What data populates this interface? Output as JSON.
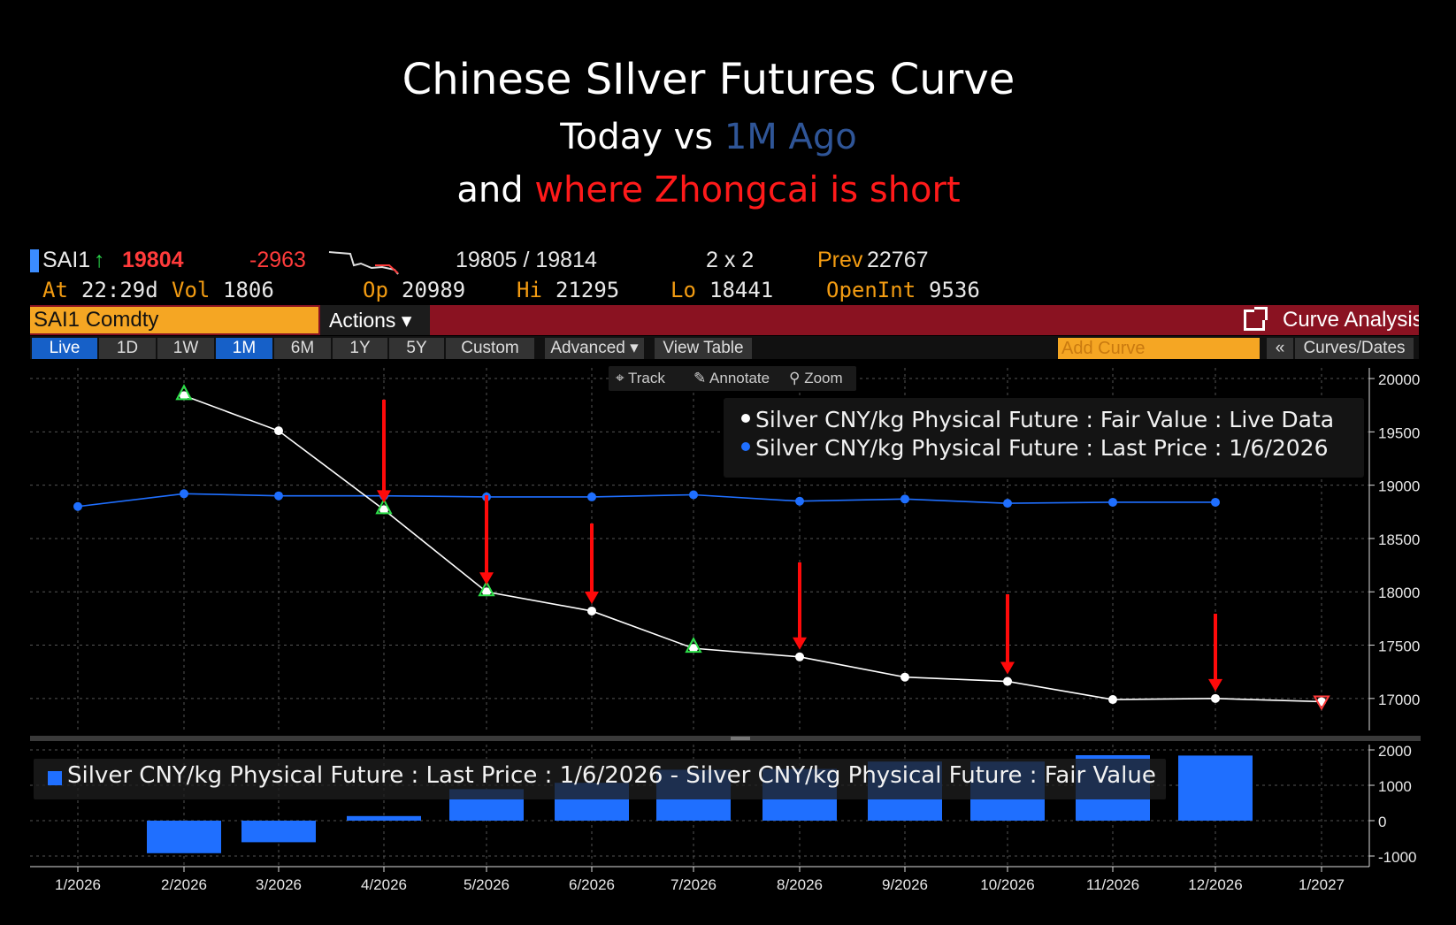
{
  "titles": {
    "line1": "Chinese SIlver Futures Curve",
    "line2_a": "Today vs ",
    "line2_b": "1M Ago",
    "line3_a": "and ",
    "line3_b": "where Zhongcai is short"
  },
  "quote": {
    "ticker": "SAI1",
    "arrow": "↑",
    "last": "19804",
    "change": "-2963",
    "bid_ask": "19805 / 19814",
    "size": "2 x 2",
    "prev_label": "Prev",
    "prev": "22767",
    "at_label": "At",
    "at": "22:29d",
    "vol_label": "Vol",
    "vol": "1806",
    "op_label": "Op",
    "op": "20989",
    "hi_label": "Hi",
    "hi": "21295",
    "lo_label": "Lo",
    "lo": "18441",
    "oi_label": "OpenInt",
    "oi": "9536"
  },
  "toolbar": {
    "security": "SAI1 Comdty",
    "actions": "Actions ▾",
    "curve_analysis": "Curve Analysis",
    "periods": [
      "Live",
      "1D",
      "1W",
      "1M",
      "6M",
      "1Y",
      "5Y",
      "Custom"
    ],
    "advanced": "Advanced ▾",
    "view_table": "View Table",
    "add_curve_placeholder": "Add Curve",
    "collapse": "«",
    "curves_dates": "Curves/Dates",
    "track": "Track",
    "annotate": "Annotate",
    "zoom": "Zoom"
  },
  "colors": {
    "live": "#ffffff",
    "last": "#1f6fff",
    "arrow": "#ff0a0a",
    "triangle": "#2ee04a",
    "bar": "#1f6fff"
  },
  "chart_data": [
    {
      "type": "line",
      "title": "",
      "x": [
        "1/2026",
        "2/2026",
        "3/2026",
        "4/2026",
        "5/2026",
        "6/2026",
        "7/2026",
        "8/2026",
        "9/2026",
        "10/2026",
        "11/2026",
        "12/2026",
        "1/2027"
      ],
      "series": [
        {
          "name": "Silver CNY/kg Physical Future : Fair Value : Live Data",
          "values": [
            null,
            19840,
            19510,
            18770,
            18000,
            17820,
            17470,
            17390,
            17200,
            17160,
            16990,
            17000,
            16970
          ]
        },
        {
          "name": "Silver CNY/kg Physical Future : Last Price : 1/6/2026",
          "values": [
            18800,
            18920,
            18900,
            18900,
            18890,
            18890,
            18910,
            18850,
            18870,
            18830,
            18840,
            18840,
            null
          ]
        }
      ],
      "ylim": [
        16700,
        20100
      ],
      "yticks": [
        20000,
        19500,
        19000,
        18500,
        18000,
        17500,
        17000
      ],
      "ytick_labels": [
        "20000",
        "19500",
        "19000",
        "18500",
        "18000",
        "17500",
        "17000"
      ],
      "grid": true,
      "legend": "top-right",
      "annotations": {
        "short_arrows_at": [
          "4/2026",
          "5/2026",
          "6/2026",
          "8/2026",
          "10/2026",
          "12/2026"
        ],
        "traded_markers_at": [
          "2/2026",
          "4/2026",
          "5/2026",
          "7/2026"
        ],
        "down_marker_at": [
          "1/2027"
        ]
      }
    },
    {
      "type": "bar",
      "x": [
        "1/2026",
        "2/2026",
        "3/2026",
        "4/2026",
        "5/2026",
        "6/2026",
        "7/2026",
        "8/2026",
        "9/2026",
        "10/2026",
        "11/2026",
        "12/2026",
        "1/2027"
      ],
      "series": [
        {
          "name": "Silver CNY/kg Physical Future : Last Price : 1/6/2026 - Silver CNY/kg Physical Future : Fair Value",
          "values": [
            null,
            -920,
            -610,
            130,
            890,
            1070,
            1440,
            1460,
            1670,
            1670,
            1850,
            1840,
            null
          ]
        }
      ],
      "ylim": [
        -1300,
        2150
      ],
      "yticks": [
        2000,
        1000,
        0,
        -1000
      ],
      "ytick_labels": [
        "2000",
        "1000",
        "0",
        "-1000"
      ],
      "grid": true,
      "legend": "top-left"
    }
  ]
}
